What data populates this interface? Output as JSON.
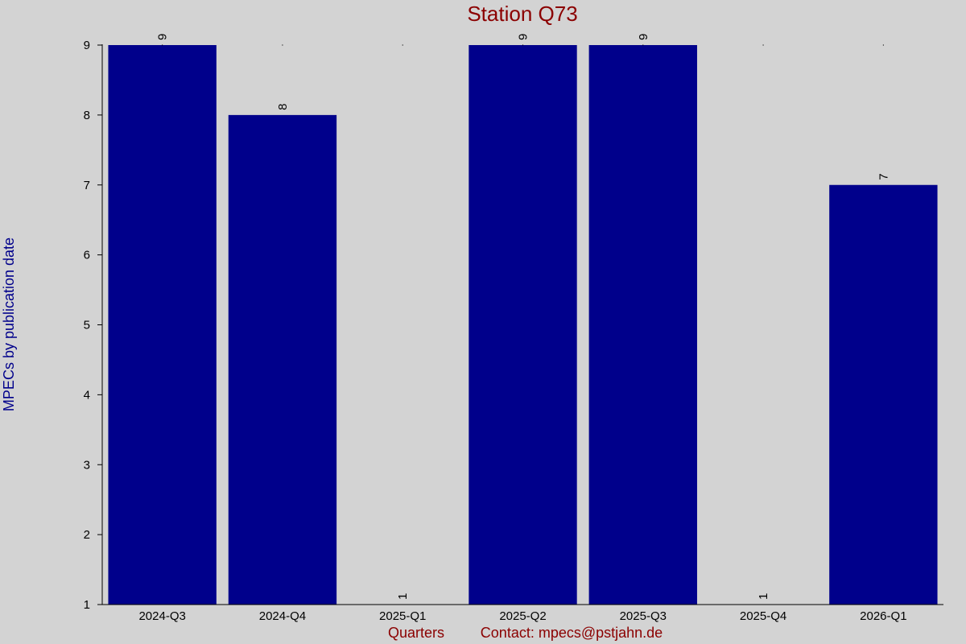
{
  "chart_data": {
    "type": "bar",
    "title": "Station Q73",
    "xlabel": "Quarters",
    "ylabel": "MPECs by publication date",
    "contact": "Contact: mpecs@pstjahn.de",
    "categories": [
      "2024-Q3",
      "2024-Q4",
      "2025-Q1",
      "2025-Q2",
      "2025-Q3",
      "2025-Q4",
      "2026-Q1"
    ],
    "values": [
      9,
      8,
      1,
      9,
      9,
      1,
      7
    ],
    "ylim": [
      1,
      9
    ],
    "yticks": [
      1,
      2,
      3,
      4,
      5,
      6,
      7,
      8,
      9
    ],
    "grid": false,
    "legend": "none"
  },
  "colors": {
    "background": "#d3d3d3",
    "bar": "#00008b",
    "title": "#8b0000",
    "ylabel": "#00008b",
    "footer": "#8b0000",
    "axis": "#000000"
  }
}
